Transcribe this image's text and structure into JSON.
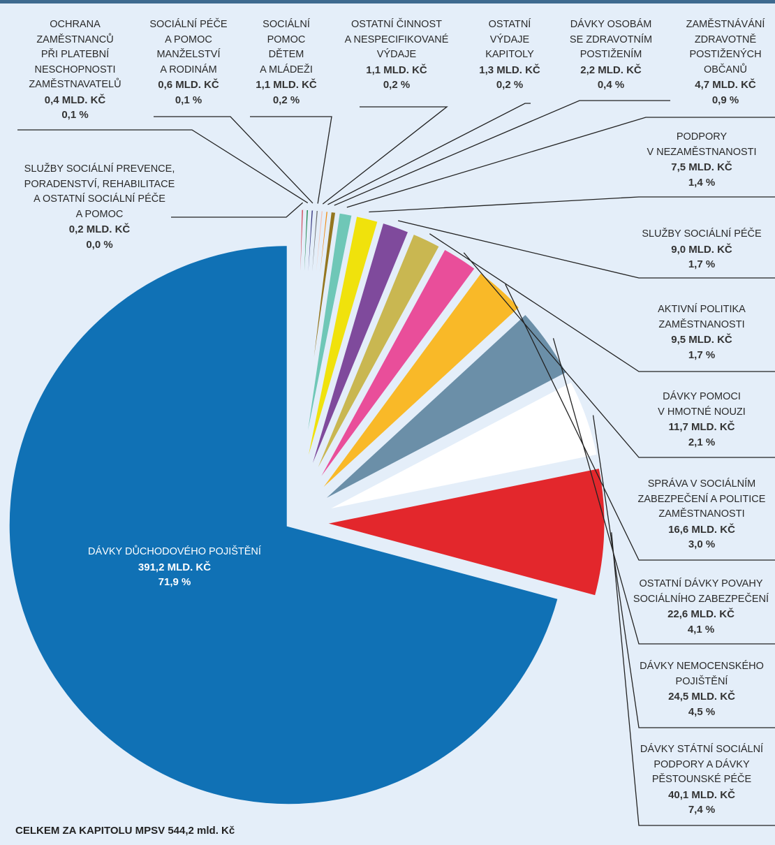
{
  "chart_data": {
    "type": "pie",
    "total_label": "CELKEM ZA KAPITOLU MPSV 544,2 mld. Kč",
    "slices": [
      {
        "name": "DÁVKY DŮCHODOVÉHO POJIŠTĚNÍ",
        "value": 391.2,
        "value_label": "391,2 mld. Kč",
        "pct_label": "71,9 %",
        "color": "#1071b5"
      },
      {
        "name": "DÁVKY STÁTNÍ SOCIÁLNÍ\nPODPORY A DÁVKY\nPĚSTOUNSKÉ PÉČE",
        "value": 40.1,
        "value_label": "40,1 mld. Kč",
        "pct_label": "7,4 %",
        "color": "#e3272c"
      },
      {
        "name": "DÁVKY NEMOCENSKÉHO\nPOJIŠTĚNÍ",
        "value": 24.5,
        "value_label": "24,5 mld. Kč",
        "pct_label": "4,5 %",
        "color": "#ffffff"
      },
      {
        "name": "OSTATNÍ DÁVKY POVAHY\nSOCIÁLNÍHO ZABEZPEČENÍ",
        "value": 22.6,
        "value_label": "22,6 mld. Kč",
        "pct_label": "4,1 %",
        "color": "#6b8fa8"
      },
      {
        "name": "SPRÁVA V SOCIÁLNÍM\nZABEZPEČENÍ A POLITICE\nZAMĚSTNANOSTI",
        "value": 16.6,
        "value_label": "16,6 mld. Kč",
        "pct_label": "3,0 %",
        "color": "#f9b928"
      },
      {
        "name": "DÁVKY POMOCI\nV HMOTNÉ NOUZI",
        "value": 11.7,
        "value_label": "11,7 mld. Kč",
        "pct_label": "2,1 %",
        "color": "#e94e9a"
      },
      {
        "name": "AKTIVNÍ POLITIKA\nZAMĚSTNANOSTI",
        "value": 9.5,
        "value_label": "9,5 mld. Kč",
        "pct_label": "1,7 %",
        "color": "#c9b751"
      },
      {
        "name": "SLUŽBY SOCIÁLNÍ PÉČE",
        "value": 9.0,
        "value_label": "9,0 mld. Kč",
        "pct_label": "1,7 %",
        "color": "#7f4a9c"
      },
      {
        "name": "PODPORY\nV NEZAMĚSTNANOSTI",
        "value": 7.5,
        "value_label": "7,5 mld. Kč",
        "pct_label": "1,4 %",
        "color": "#f0e20c"
      },
      {
        "name": "ZAMĚSTNÁVÁNÍ\nZDRAVOTNĚ\nPOSTIŽENÝCH\nOBČANŮ",
        "value": 4.7,
        "value_label": "4,7 mld. Kč",
        "pct_label": "0,9 %",
        "color": "#6fc7b7"
      },
      {
        "name": "DÁVKY OSOBÁM\nSE ZDRAVOTNÍM\nPOSTIŽENÍM",
        "value": 2.2,
        "value_label": "2,2 mld. Kč",
        "pct_label": "0,4 %",
        "color": "#94761f"
      },
      {
        "name": "OSTATNÍ\nVÝDAJE\nKAPITOLY",
        "value": 1.3,
        "value_label": "1,3 mld. Kč",
        "pct_label": "0,2 %",
        "color": "#f28b12"
      },
      {
        "name": "OSTATNÍ ČINNOST\nA NESPECIFIKOVANÉ\nVÝDAJE",
        "value": 1.1,
        "value_label": "1,1 mld. Kč",
        "pct_label": "0,2 %",
        "color": "#f5c3b3"
      },
      {
        "name": "SOCIÁLNÍ\nPOMOC\nDĚTEM\nA MLÁDEŽI",
        "value": 1.1,
        "value_label": "1,1 mld. Kč",
        "pct_label": "0,2 %",
        "color": "#6b6b6b"
      },
      {
        "name": "SOCIÁLNÍ PÉČE\nA POMOC\nMANŽELSTVÍ\nA RODINÁM",
        "value": 0.6,
        "value_label": "0,6 mld. Kč",
        "pct_label": "0,1 %",
        "color": "#2b2a78"
      },
      {
        "name": "OCHRANA\nZAMĚSTNANCŮ\nPŘI PLATEBNÍ\nNESCHOPNOSTI\nZAMĚSTNAVATELŮ",
        "value": 0.4,
        "value_label": "0,4 mld. Kč",
        "pct_label": "0,1 %",
        "color": "#0f7a3f"
      },
      {
        "name": "SLUŽBY SOCIÁLNÍ PREVENCE,\nPORADENSTVÍ, REHABILITACE\nA OSTATNÍ SOCIÁLNÍ PÉČE\nA POMOC",
        "value": 0.2,
        "value_label": "0,2 mld. Kč",
        "pct_label": "0,0 %",
        "color": "#d13a4a"
      }
    ]
  }
}
